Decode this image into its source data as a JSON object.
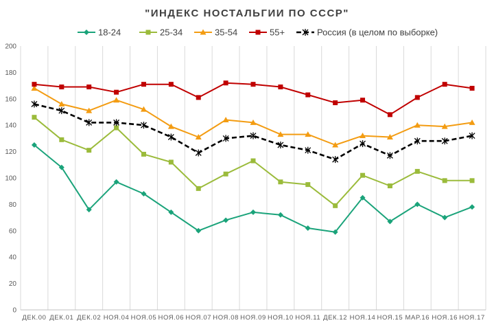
{
  "chart_data": {
    "type": "line",
    "title": "\"ИНДЕКС НОСТАЛЬГИИ ПО СССР\"",
    "xlabel": "",
    "ylabel": "",
    "ylim": [
      0,
      200
    ],
    "yticks": [
      0,
      20,
      40,
      60,
      80,
      100,
      120,
      140,
      160,
      180,
      200
    ],
    "grid": "vertical",
    "legend": "top",
    "categories": [
      "ДЕК.00",
      "ДЕК.01",
      "ДЕК.02",
      "НОЯ.04",
      "НОЯ.05",
      "НОЯ.06",
      "НОЯ.07",
      "НОЯ.08",
      "НОЯ.09",
      "НОЯ.10",
      "НОЯ.11",
      "ДЕК.12",
      "НОЯ.14",
      "НОЯ.15",
      "МАР.16",
      "НОЯ.16",
      "НОЯ.17"
    ],
    "series": [
      {
        "name": "18-24",
        "color": "#1aa37a",
        "marker": "diamond",
        "dashed": false,
        "values": [
          125,
          108,
          76,
          97,
          88,
          74,
          60,
          68,
          74,
          72,
          62,
          59,
          85,
          67,
          80,
          70,
          78
        ]
      },
      {
        "name": "25-34",
        "color": "#9bbb3b",
        "marker": "square",
        "dashed": false,
        "values": [
          146,
          129,
          121,
          138,
          118,
          112,
          92,
          103,
          113,
          97,
          95,
          79,
          102,
          94,
          105,
          98,
          98
        ]
      },
      {
        "name": "35-54",
        "color": "#f39c12",
        "marker": "triangle",
        "dashed": false,
        "values": [
          168,
          156,
          151,
          159,
          152,
          139,
          131,
          144,
          142,
          133,
          133,
          125,
          132,
          131,
          140,
          139,
          142
        ]
      },
      {
        "name": "55+",
        "color": "#c00000",
        "marker": "square",
        "dashed": false,
        "values": [
          171,
          169,
          169,
          165,
          171,
          171,
          161,
          172,
          171,
          169,
          163,
          157,
          159,
          148,
          161,
          171,
          168
        ]
      },
      {
        "name": "Россия (в целом по выборке)",
        "color": "#000000",
        "marker": "star",
        "dashed": true,
        "values": [
          156,
          151,
          142,
          142,
          140,
          131,
          119,
          130,
          132,
          125,
          121,
          114,
          126,
          117,
          128,
          128,
          132
        ]
      }
    ]
  }
}
